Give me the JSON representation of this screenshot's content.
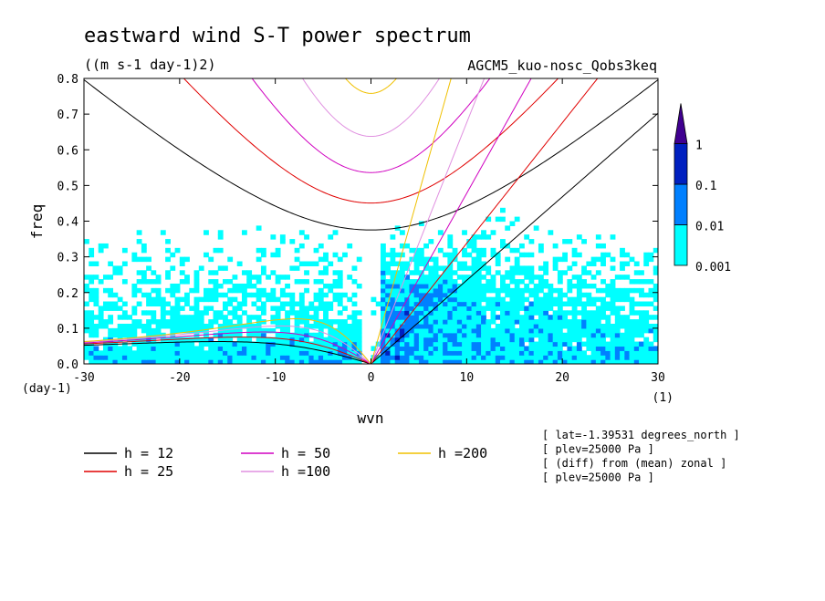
{
  "chart_data": {
    "type": "heatmap",
    "title": "eastward wind S-T power spectrum",
    "subtitle": "((m s-1 day-1)2)",
    "experiment": "AGCM5_kuo-nosc_Qobs3keq",
    "xlabel": "wvn",
    "ylabel": "freq",
    "x_unit": "(1)",
    "y_unit": "(day-1)",
    "xlim": [
      -30,
      30
    ],
    "ylim": [
      0,
      0.8
    ],
    "xticks": [
      "-30",
      "-20",
      "-10",
      "0",
      "10",
      "20",
      "30"
    ],
    "yticks": [
      "0.0",
      "0.1",
      "0.2",
      "0.3",
      "0.4",
      "0.5",
      "0.6",
      "0.7",
      "0.8"
    ],
    "colorbar": {
      "levels": [
        "0.001",
        "0.01",
        "0.1",
        "1"
      ],
      "colors": [
        "#00ffff",
        "#0080ff",
        "#0020c0",
        "#400090"
      ]
    },
    "dispersion_curves": [
      {
        "label": "h = 12",
        "h": 12,
        "color": "#000000"
      },
      {
        "label": "h = 25",
        "h": 25,
        "color": "#e00000"
      },
      {
        "label": "h = 50",
        "h": 50,
        "color": "#d000c0"
      },
      {
        "label": "h =100",
        "h": 100,
        "color": "#e090e0"
      },
      {
        "label": "h =200",
        "h": 200,
        "color": "#f0c000"
      }
    ],
    "annotations": [
      "[ lat=-1.39531 degrees_north ]",
      "[ plev=25000 Pa ]",
      "[ (diff) from (mean) zonal ]",
      "[ plev=25000 Pa ]"
    ]
  }
}
